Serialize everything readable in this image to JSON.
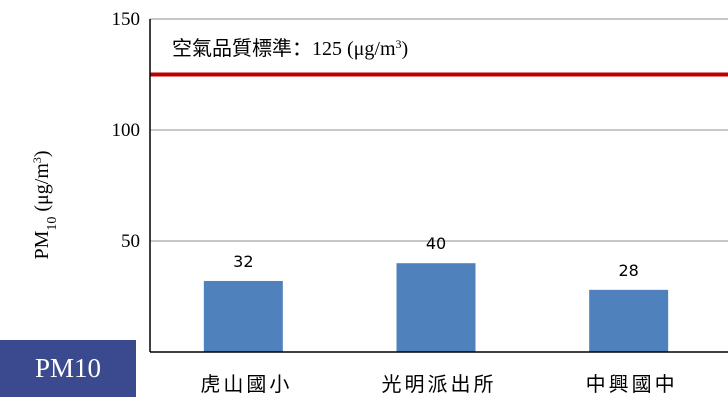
{
  "badge": {
    "label": "PM10"
  },
  "chart_data": {
    "type": "bar",
    "title": "",
    "xlabel": "",
    "ylabel": {
      "main": "PM",
      "sub": "10",
      "unit_pre": " (μg/m",
      "unit_sup": "3",
      "unit_post": ")"
    },
    "categories": [
      "虎山國小",
      "光明派出所",
      "中興國中"
    ],
    "values": [
      32,
      40,
      28
    ],
    "data_labels": [
      "32",
      "40",
      "28"
    ],
    "ylim": [
      0,
      150
    ],
    "yticks": [
      50,
      100,
      150
    ],
    "grid": true,
    "bar_color": "#4f81bd",
    "reference_line": {
      "value": 125,
      "color": "#c00000",
      "label_prefix": "空氣品質標準：",
      "label_value": "125",
      "label_unit_pre": " (μg/m",
      "label_unit_sup": "3",
      "label_unit_post": ")"
    }
  }
}
